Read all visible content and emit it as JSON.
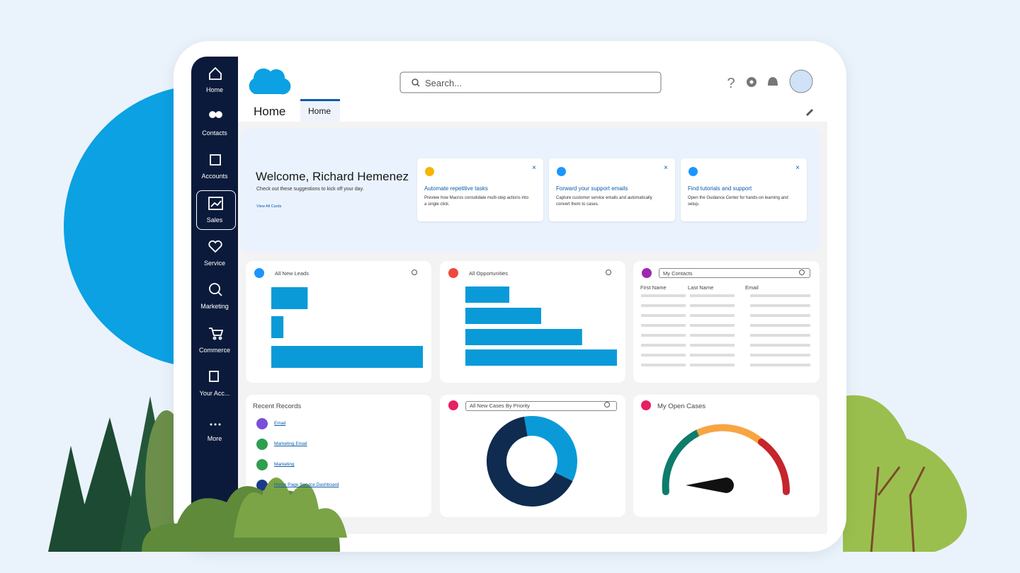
{
  "nav": [
    "Home",
    "Contacts",
    "Accounts",
    "Sales",
    "Service",
    "Marketing",
    "Commerce",
    "Your Acc...",
    "More"
  ],
  "search_placeholder": "Search...",
  "page_title": "Home",
  "tab": "Home",
  "welcome": {
    "title": "Welcome, Richard Hemenez",
    "subtitle": "Check out these suggestions to kick off your day.",
    "link": "View All Cards"
  },
  "cards": [
    {
      "title": "Automate repetitive tasks",
      "text": "Preview how Macros consolidate multi-step actions into a single click."
    },
    {
      "title": "Forward your support emails",
      "text": "Capture customer service emails and automatically convert them to cases."
    },
    {
      "title": "Find tutorials and support",
      "text": "Open the Guidance Center for hands-on learning and setup."
    }
  ],
  "leads": {
    "title": "All New Leads",
    "values": [
      24,
      8,
      100
    ]
  },
  "opportunities": {
    "title": "All Opportunities",
    "values": [
      29,
      50,
      77,
      100
    ]
  },
  "contacts": {
    "title": "My Contacts",
    "columns": [
      "First Name",
      "Last Name",
      "Email"
    ]
  },
  "recent": {
    "title": "Recent Records",
    "items": [
      "Email",
      "Marketing Email",
      "Marketing",
      "Home Page Service Dashboard"
    ]
  },
  "cases_by_priority": {
    "title": "All New Cases By Priority",
    "values": [
      35,
      65
    ]
  },
  "open_cases": {
    "title": "My Open Cases"
  }
}
